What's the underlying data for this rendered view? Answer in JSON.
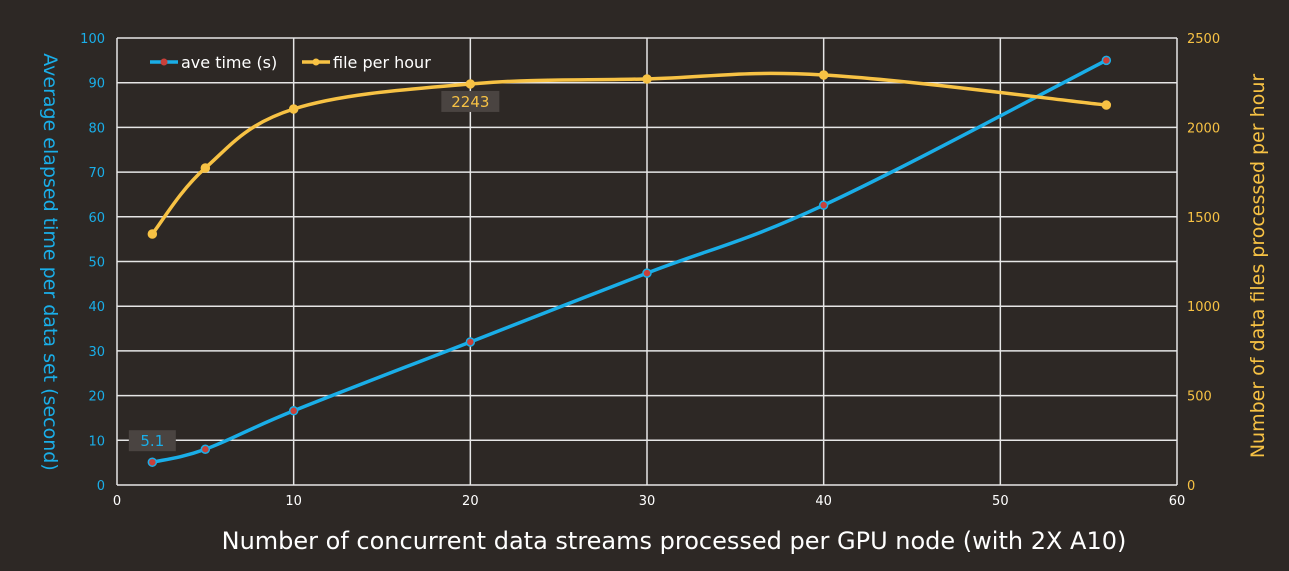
{
  "chart_data": {
    "type": "line",
    "xlabel": "Number of concurrent data streams processed per GPU node (with 2X A10)",
    "ylabel": "Average  elapsed  time per data set (second)",
    "y2label": "Number  of  data  files  processed per hour",
    "xlim": [
      0,
      60
    ],
    "ylim": [
      0,
      100
    ],
    "y2lim": [
      0,
      2500
    ],
    "xticks": [
      0,
      10,
      20,
      30,
      40,
      50,
      60
    ],
    "yticks": [
      0,
      10,
      20,
      30,
      40,
      50,
      60,
      70,
      80,
      90,
      100
    ],
    "y2ticks": [
      0,
      500,
      1000,
      1500,
      2000,
      2500
    ],
    "grid": true,
    "legend_position": "top-left",
    "x": [
      2,
      5,
      10,
      20,
      30,
      40,
      56
    ],
    "series": [
      {
        "name": "ave time (s)",
        "axis": "left",
        "color": "#1aaee8",
        "marker_color": "#c9403a",
        "values": [
          5.1,
          8,
          16.6,
          32,
          47.4,
          62.6,
          95
        ],
        "data_labels": {
          "0": "5.1"
        }
      },
      {
        "name": "file per hour",
        "axis": "right",
        "color": "#f7c244",
        "marker_color": "#f7c244",
        "values": [
          1404,
          1773,
          2103,
          2243,
          2271,
          2293,
          2125
        ],
        "data_labels": {
          "3": "2243"
        }
      }
    ]
  }
}
